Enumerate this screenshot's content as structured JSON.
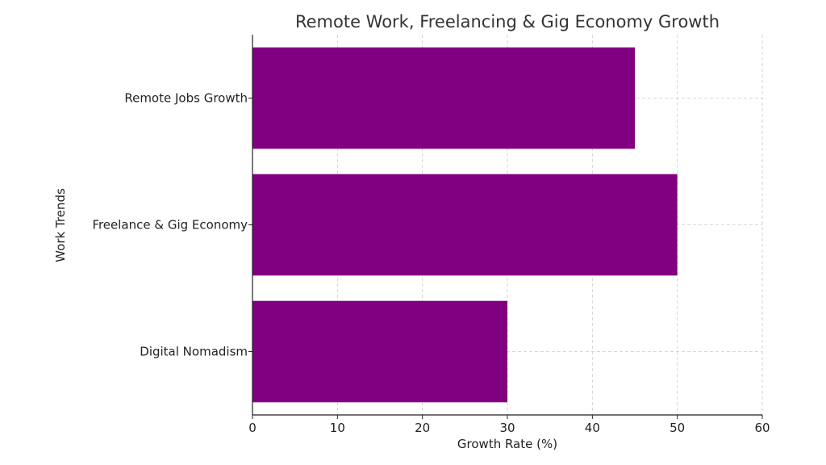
{
  "chart_data": {
    "type": "bar",
    "orientation": "horizontal",
    "title": "Remote Work, Freelancing & Gig Economy Growth",
    "xlabel": "Growth Rate (%)",
    "ylabel": "Work Trends",
    "categories": [
      "Remote Jobs Growth",
      "Freelance & Gig Economy",
      "Digital Nomadism"
    ],
    "values": [
      45,
      50,
      30
    ],
    "xlim": [
      0,
      60
    ],
    "xticks": [
      0,
      10,
      20,
      30,
      40,
      50,
      60
    ],
    "grid": true,
    "bar_color": "#800080"
  }
}
